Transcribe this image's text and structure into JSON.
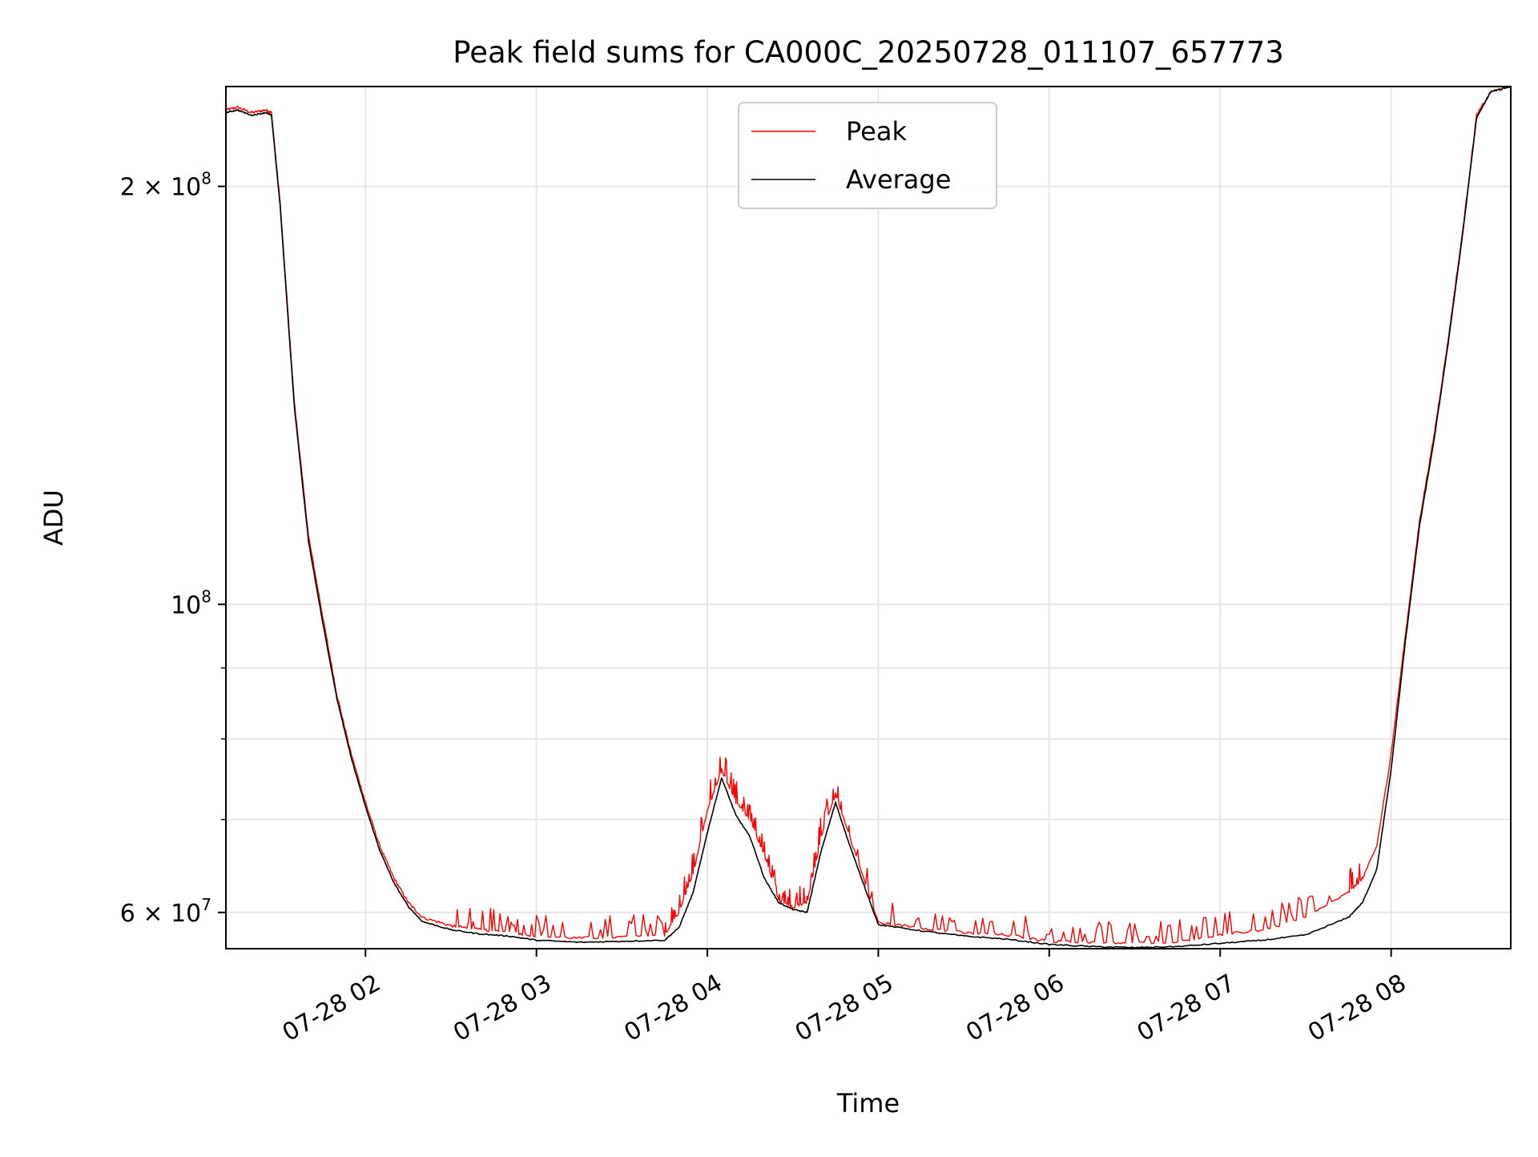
{
  "chart_data": {
    "type": "line",
    "title": "Peak field sums for CA000C_20250728_011107_657773",
    "xlabel": "Time",
    "ylabel": "ADU",
    "y_scale": "log",
    "grid": true,
    "legend_position": "top-center",
    "xlim": [
      "07-28 01:11",
      "07-28 08:42"
    ],
    "ylim": [
      56500000,
      236000000
    ],
    "x_ticks": [
      "07-28 02:00",
      "07-28 03:00",
      "07-28 04:00",
      "07-28 05:00",
      "07-28 06:00",
      "07-28 07:00",
      "07-28 08:00"
    ],
    "x_tick_labels": [
      "07-28 02",
      "07-28 03",
      "07-28 04",
      "07-28 05",
      "07-28 06",
      "07-28 07",
      "07-28 08"
    ],
    "y_ticks": [
      {
        "value": 60000000,
        "mantissa": "6",
        "times": "×",
        "base": "10",
        "exponent": "7"
      },
      {
        "value": 100000000,
        "mantissa": "",
        "times": "",
        "base": "10",
        "exponent": "8"
      },
      {
        "value": 200000000,
        "mantissa": "2",
        "times": "×",
        "base": "10",
        "exponent": "8"
      }
    ],
    "y_minor_ticks": [
      70000000,
      80000000,
      90000000
    ],
    "series": [
      {
        "name": "Peak",
        "color": "#ff0000",
        "style": "noisy-spikes",
        "x": [
          "07-28 01:11",
          "07-28 01:15",
          "07-28 01:20",
          "07-28 01:25",
          "07-28 01:27",
          "07-28 01:30",
          "07-28 01:35",
          "07-28 01:40",
          "07-28 01:45",
          "07-28 01:50",
          "07-28 01:55",
          "07-28 02:00",
          "07-28 02:05",
          "07-28 02:10",
          "07-28 02:15",
          "07-28 02:20",
          "07-28 02:30",
          "07-28 02:40",
          "07-28 02:50",
          "07-28 03:00",
          "07-28 03:15",
          "07-28 03:30",
          "07-28 03:45",
          "07-28 03:50",
          "07-28 03:55",
          "07-28 04:00",
          "07-28 04:05",
          "07-28 04:10",
          "07-28 04:15",
          "07-28 04:20",
          "07-28 04:25",
          "07-28 04:30",
          "07-28 04:35",
          "07-28 04:40",
          "07-28 04:45",
          "07-28 04:50",
          "07-28 05:00",
          "07-28 05:15",
          "07-28 05:30",
          "07-28 05:45",
          "07-28 06:00",
          "07-28 06:15",
          "07-28 06:30",
          "07-28 06:45",
          "07-28 07:00",
          "07-28 07:15",
          "07-28 07:30",
          "07-28 07:45",
          "07-28 07:50",
          "07-28 07:55",
          "07-28 08:00",
          "07-28 08:05",
          "07-28 08:10",
          "07-28 08:15",
          "07-28 08:20",
          "07-28 08:25",
          "07-28 08:30",
          "07-28 08:35",
          "07-28 08:42"
        ],
        "values": [
          227000000,
          228000000,
          226000000,
          227000000,
          226000000,
          195000000,
          140000000,
          112000000,
          98000000,
          86000000,
          78000000,
          72000000,
          67000000,
          63500000,
          61000000,
          59500000,
          58700000,
          58300000,
          58100000,
          57700000,
          57500000,
          57600000,
          57800000,
          60000000,
          64000000,
          71000000,
          76000000,
          72000000,
          70000000,
          66000000,
          61200000,
          60500000,
          61000000,
          68000000,
          73000000,
          68000000,
          59000000,
          58500000,
          58000000,
          57800000,
          57200000,
          57100000,
          57000000,
          57200000,
          57800000,
          58300000,
          59500000,
          62000000,
          63500000,
          67000000,
          78000000,
          95000000,
          115000000,
          132000000,
          155000000,
          185000000,
          225000000,
          234000000,
          236000000
        ]
      },
      {
        "name": "Average",
        "color": "#000000",
        "style": "smooth",
        "x": [
          "07-28 01:11",
          "07-28 01:15",
          "07-28 01:20",
          "07-28 01:25",
          "07-28 01:27",
          "07-28 01:30",
          "07-28 01:35",
          "07-28 01:40",
          "07-28 01:45",
          "07-28 01:50",
          "07-28 01:55",
          "07-28 02:00",
          "07-28 02:05",
          "07-28 02:10",
          "07-28 02:15",
          "07-28 02:20",
          "07-28 02:30",
          "07-28 02:40",
          "07-28 02:50",
          "07-28 03:00",
          "07-28 03:15",
          "07-28 03:30",
          "07-28 03:45",
          "07-28 03:50",
          "07-28 03:55",
          "07-28 04:00",
          "07-28 04:05",
          "07-28 04:10",
          "07-28 04:15",
          "07-28 04:20",
          "07-28 04:25",
          "07-28 04:30",
          "07-28 04:35",
          "07-28 04:40",
          "07-28 04:45",
          "07-28 04:50",
          "07-28 05:00",
          "07-28 05:15",
          "07-28 05:30",
          "07-28 05:45",
          "07-28 06:00",
          "07-28 06:15",
          "07-28 06:30",
          "07-28 06:45",
          "07-28 07:00",
          "07-28 07:15",
          "07-28 07:30",
          "07-28 07:45",
          "07-28 07:50",
          "07-28 07:55",
          "07-28 08:00",
          "07-28 08:05",
          "07-28 08:10",
          "07-28 08:15",
          "07-28 08:20",
          "07-28 08:25",
          "07-28 08:30",
          "07-28 08:35",
          "07-28 08:42"
        ],
        "values": [
          226000000,
          227000000,
          225000000,
          226000000,
          225000000,
          194000000,
          139000000,
          111000000,
          97000000,
          85500000,
          77500000,
          71500000,
          66500000,
          63000000,
          60600000,
          59100000,
          58300000,
          57900000,
          57700000,
          57300000,
          57100000,
          57200000,
          57300000,
          58500000,
          62000000,
          68500000,
          75000000,
          70500000,
          68000000,
          63500000,
          61000000,
          60300000,
          60000000,
          66500000,
          72000000,
          67000000,
          58800000,
          58200000,
          57700000,
          57400000,
          56900000,
          56700000,
          56600000,
          56700000,
          57000000,
          57300000,
          57800000,
          59500000,
          61000000,
          64500000,
          76000000,
          94000000,
          114000000,
          131000000,
          154000000,
          184000000,
          224000000,
          234000000,
          236000000
        ]
      }
    ]
  }
}
